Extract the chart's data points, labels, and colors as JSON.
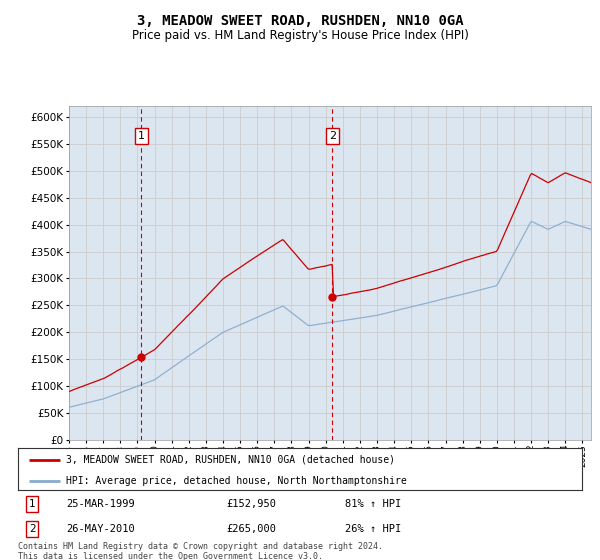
{
  "title": "3, MEADOW SWEET ROAD, RUSHDEN, NN10 0GA",
  "subtitle": "Price paid vs. HM Land Registry's House Price Index (HPI)",
  "legend_line1": "3, MEADOW SWEET ROAD, RUSHDEN, NN10 0GA (detached house)",
  "legend_line2": "HPI: Average price, detached house, North Northamptonshire",
  "table_row1_date": "25-MAR-1999",
  "table_row1_price": "£152,950",
  "table_row1_hpi": "81% ↑ HPI",
  "table_row2_date": "26-MAY-2010",
  "table_row2_price": "£265,000",
  "table_row2_hpi": "26% ↑ HPI",
  "footnote": "Contains HM Land Registry data © Crown copyright and database right 2024.\nThis data is licensed under the Open Government Licence v3.0.",
  "sale1_year": 1999.23,
  "sale1_price": 152950,
  "sale2_year": 2010.39,
  "sale2_price": 265000,
  "red_line_color": "#cc0000",
  "blue_line_color": "#88aacc",
  "background_color": "#dce6f1",
  "plot_bg_color": "#ffffff",
  "grid_color": "#cccccc",
  "dashed_line_color": "#cc0000",
  "ylim_min": 0,
  "ylim_max": 620000,
  "xmin": 1995,
  "xmax": 2025.5,
  "title_fontsize": 10,
  "subtitle_fontsize": 8.5
}
